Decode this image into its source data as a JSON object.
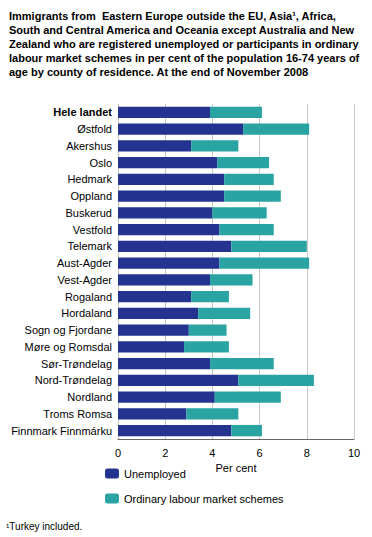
{
  "chart_data": {
    "type": "bar",
    "orientation": "horizontal",
    "stacked": true,
    "grid": true,
    "legend": "bottom",
    "title": "Immigrants from  Eastern Europe outside the EU, Asia¹, Africa, South and Central America and Oceania except Australia and New Zealand who are registered unemployed or participants in ordinary labour market schemes in per cent of the population 16-74 years of age by county of residence. At the end of November 2008",
    "xlabel": "Per cent",
    "annotations": [
      "¹Turkey included."
    ],
    "categories": [
      "Hele landet",
      "Østfold",
      "Akershus",
      "Oslo",
      "Hedmark",
      "Oppland",
      "Buskerud",
      "Vestfold",
      "Telemark",
      "Aust-Agder",
      "Vest-Agder",
      "Rogaland",
      "Hordaland",
      "Sogn og Fjordane",
      "Møre og Romsdal",
      "Sør-Trøndelag",
      "Nord-Trøndelag",
      "Nordland",
      "Troms Romsa",
      "Finnmark Finnmárku"
    ],
    "series": [
      {
        "name": "Unemployed",
        "color": "#23338f",
        "values": [
          3.9,
          5.3,
          3.1,
          4.2,
          4.5,
          4.5,
          4.0,
          4.3,
          4.8,
          4.3,
          3.9,
          3.1,
          3.4,
          3.0,
          2.8,
          3.9,
          5.1,
          4.1,
          2.9,
          4.8
        ]
      },
      {
        "name": "Ordinary labour market schemes",
        "color": "#2aa3a3",
        "values": [
          2.2,
          2.8,
          2.0,
          2.2,
          2.1,
          2.4,
          2.3,
          2.3,
          3.2,
          3.8,
          1.8,
          1.6,
          2.2,
          1.6,
          1.9,
          2.7,
          3.2,
          2.8,
          2.2,
          1.3
        ]
      }
    ],
    "xlim": [
      0,
      10
    ],
    "xticks": [
      0,
      2,
      4,
      6,
      8,
      10
    ]
  }
}
